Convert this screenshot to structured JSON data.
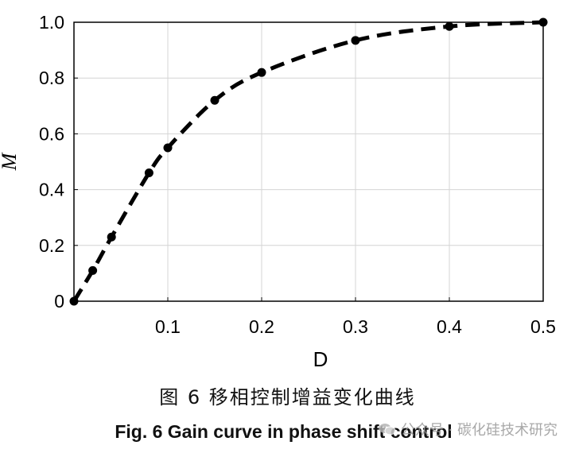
{
  "chart_data": {
    "type": "line",
    "x": [
      0,
      0.02,
      0.04,
      0.08,
      0.1,
      0.15,
      0.2,
      0.3,
      0.4,
      0.5
    ],
    "series": [
      {
        "values": [
          0,
          0.11,
          0.23,
          0.46,
          0.55,
          0.72,
          0.82,
          0.935,
          0.985,
          1.0
        ],
        "line_style": "dashed",
        "marker": "circle",
        "color": "#000000"
      }
    ],
    "xlabel": "D",
    "ylabel": "M",
    "xlim": [
      0,
      0.5
    ],
    "ylim": [
      0,
      1.0
    ],
    "x_ticks": [
      0.1,
      0.2,
      0.3,
      0.4,
      0.5
    ],
    "x_tick_labels": [
      "0.1",
      "0.2",
      "0.3",
      "0.4",
      "0.5"
    ],
    "y_ticks": [
      0,
      0.2,
      0.4,
      0.6,
      0.8,
      1.0
    ],
    "y_tick_labels": [
      "0",
      "0.2",
      "0.4",
      "0.6",
      "0.8",
      "1.0"
    ],
    "grid": true
  },
  "caption": {
    "chinese": "图 6  移相控制增益变化曲线",
    "english": "Fig. 6  Gain curve in phase shift control"
  },
  "watermark": {
    "text": "公众号 · 碳化硅技术研究",
    "icon": "wechat-icon",
    "color": "#9a9a9a"
  }
}
